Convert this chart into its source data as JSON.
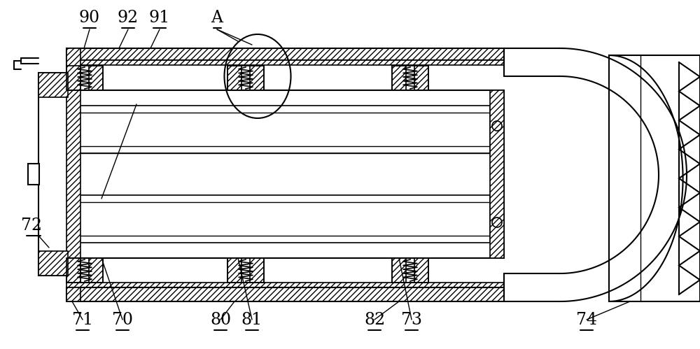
{
  "bg_color": "#ffffff",
  "line_color": "#000000",
  "fig_width": 10.0,
  "fig_height": 4.99,
  "lw_main": 1.5,
  "lw_thin": 1.0,
  "font_size": 17
}
